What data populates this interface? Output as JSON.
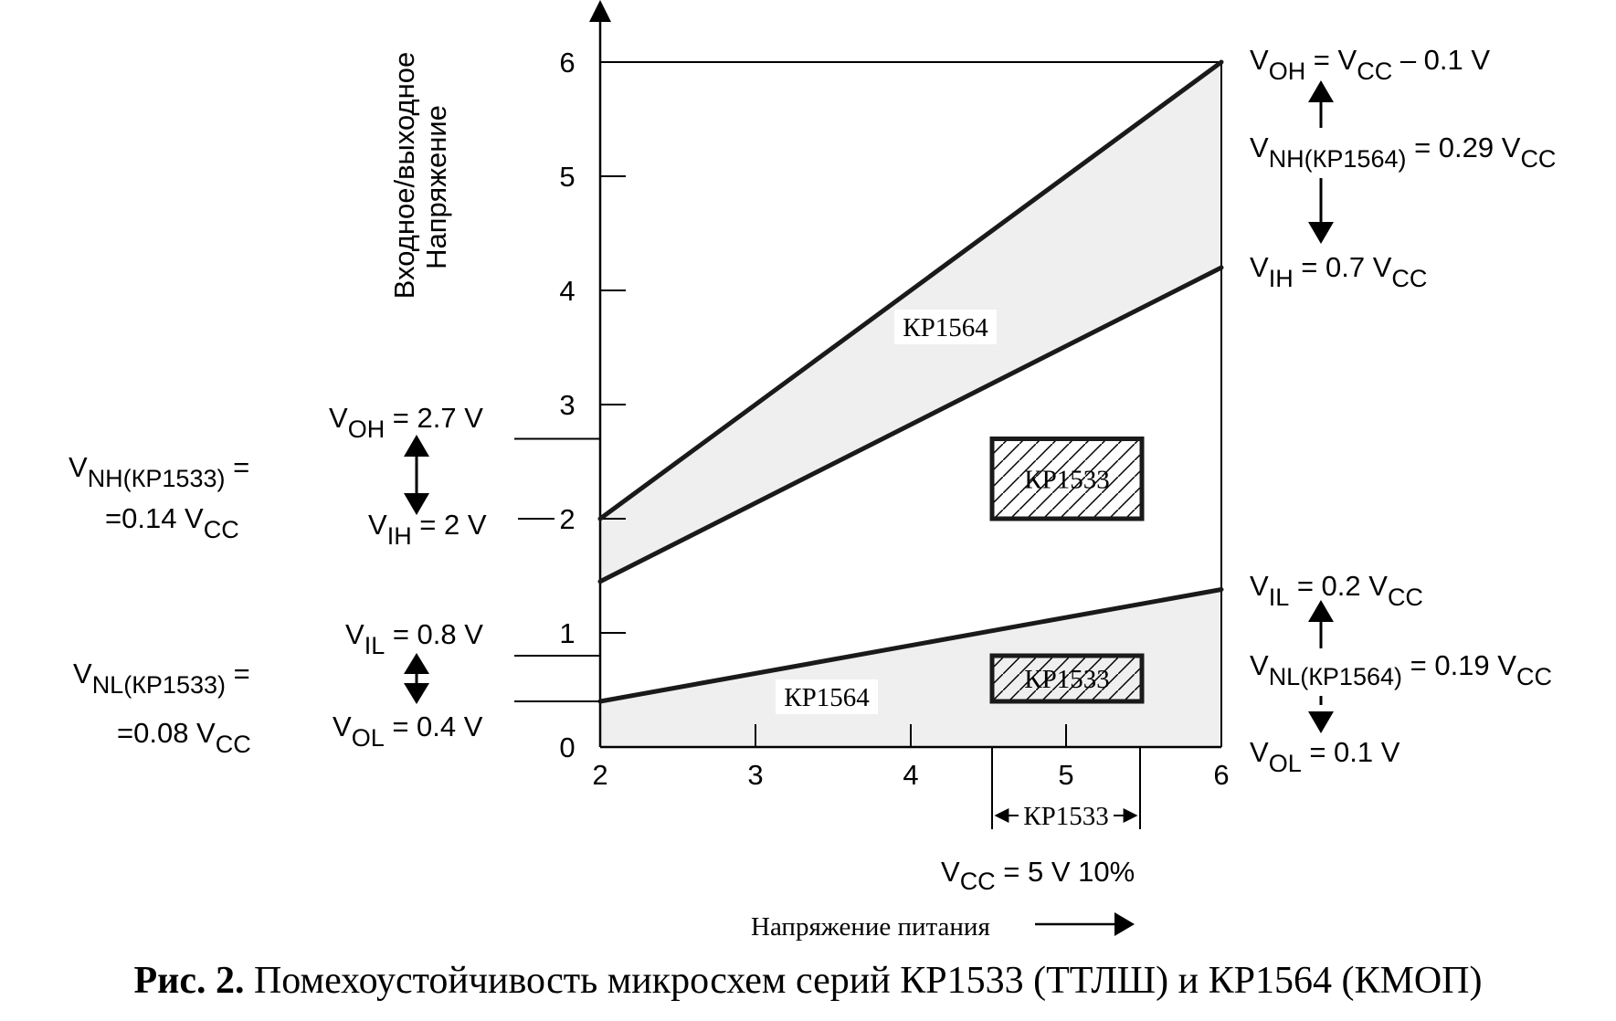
{
  "chart_data": {
    "type": "line",
    "xlabel": "Напряжение питания",
    "ylabel_line1": "Входное/выходное",
    "ylabel_line2": "Напряжение",
    "xlim": [
      2,
      6
    ],
    "ylim": [
      0,
      6
    ],
    "x_ticks": [
      "2",
      "3",
      "4",
      "5",
      "6"
    ],
    "y_ticks": [
      "0",
      "1",
      "2",
      "3",
      "4",
      "5",
      "6"
    ],
    "series": [
      {
        "x": [
          2,
          6
        ],
        "y": [
          2.0,
          6.0
        ]
      },
      {
        "x": [
          2,
          6
        ],
        "y": [
          1.45,
          4.2
        ]
      },
      {
        "x": [
          2,
          6
        ],
        "y": [
          0.4,
          1.38
        ]
      }
    ],
    "bands": [
      {
        "label": "КР1564",
        "upper": [
          2.0,
          6.0
        ],
        "lower": [
          1.45,
          4.2
        ]
      },
      {
        "label": "КР1564",
        "upper": [
          0.4,
          1.38
        ],
        "lower": [
          0,
          0
        ]
      }
    ],
    "kr1533_boxes": [
      {
        "label": "КР1533",
        "x": [
          4.5,
          5.5
        ],
        "y": [
          2.0,
          2.7
        ]
      },
      {
        "label": "КР1533",
        "x": [
          4.5,
          5.5
        ],
        "y": [
          0.4,
          0.8
        ]
      }
    ],
    "kr1533_supply_range": {
      "label": "КР1533",
      "x": [
        4.5,
        5.5
      ]
    },
    "supply_note": "V CC = 5 V   10%",
    "left_annotations": {
      "voh": {
        "main": "V",
        "sub": "OH",
        "rest": " = 2.7 V",
        "y": 2.7
      },
      "vih": {
        "main": "V",
        "sub": "IH",
        "rest": " = 2 V",
        "y": 2.0
      },
      "vil": {
        "main": "V",
        "sub": "IL",
        "rest": " = 0.8 V",
        "y": 0.8
      },
      "vol": {
        "main": "V",
        "sub": "OL",
        "rest": " = 0.4 V",
        "y": 0.4
      },
      "vnh_line1": {
        "main": "V",
        "sub": "NH(КР1533)",
        "rest": " ="
      },
      "vnh_line2": {
        "main": "=0.14 V",
        "sub": "CC",
        "rest": ""
      },
      "vnl_line1": {
        "main": "V",
        "sub": "NL(КР1533)",
        "rest": " ="
      },
      "vnl_line2": {
        "main": "=0.08 V",
        "sub": "CC",
        "rest": ""
      }
    },
    "right_annotations": {
      "voh": {
        "main": "V",
        "sub": "OH",
        "rest": " = V",
        "sub2": "CC",
        "rest2": " – 0.1 V"
      },
      "vnh": {
        "main": "V",
        "sub": "NH(КР1564)",
        "rest": " = 0.29 V",
        "sub2": "CC",
        "rest2": ""
      },
      "vih": {
        "main": "V",
        "sub": "IH",
        "rest": " = 0.7 V",
        "sub2": "CC",
        "rest2": ""
      },
      "vil": {
        "main": "V",
        "sub": "IL",
        "rest": " = 0.2 V",
        "sub2": "CC",
        "rest2": ""
      },
      "vnl": {
        "main": "V",
        "sub": "NL(КР1564)",
        "rest": " = 0.19 V",
        "sub2": "CC",
        "rest2": ""
      },
      "vol": {
        "main": "V",
        "sub": "OL",
        "rest": " = 0.1 V",
        "sub2": "",
        "rest2": ""
      }
    }
  },
  "caption": {
    "bold": "Рис. 2.",
    "text": " Помехоустойчивость микросхем серий КР1533 (ТТЛШ) и КР1564 (КМОП)"
  },
  "colors": {
    "band_fill": "#efefef",
    "line": "#1a1a1a"
  }
}
